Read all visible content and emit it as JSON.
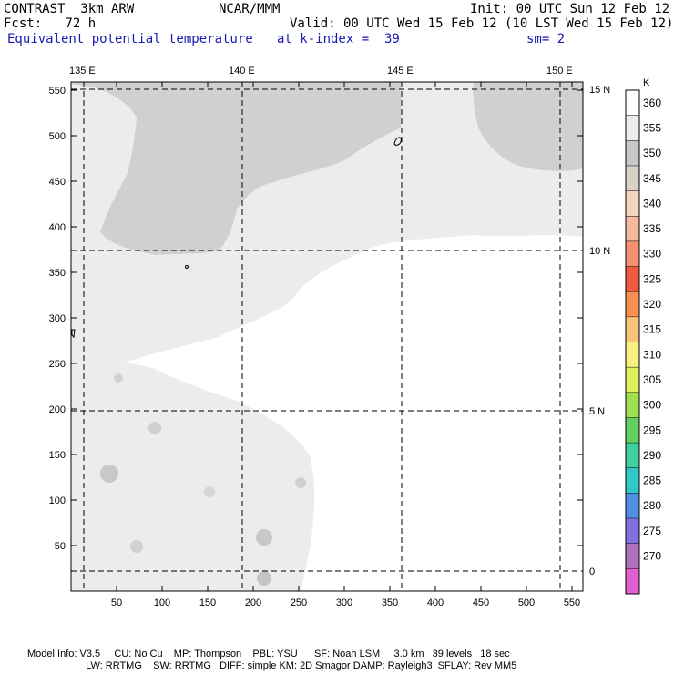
{
  "header": {
    "model": "CONTRAST  3km ARW",
    "center": "NCAR/MMM",
    "init": "Init: 00 UTC Sun 12 Feb 12",
    "fcst": "Fcst:   72 h",
    "valid": "Valid: 00 UTC Wed 15 Feb 12 (10 LST Wed 15 Feb 12)",
    "field": "Equivalent potential temperature",
    "level": "at k-index =  39",
    "smooth": "sm= 2"
  },
  "colors": {
    "title_blue": "#1a1ab3",
    "map_bg": "#ffffff",
    "shade_light": "#ececec",
    "shade_mid": "#d2d2d2",
    "shade_dark": "#bdbdbd"
  },
  "map": {
    "lon_labels": [
      "135 E",
      "140 E",
      "145 E",
      "150 E"
    ],
    "lat_labels": [
      "15 N",
      "10 N",
      "5 N",
      "0"
    ],
    "x_ticks": [
      "50",
      "100",
      "150",
      "200",
      "250",
      "300",
      "350",
      "400",
      "450",
      "500",
      "550"
    ],
    "y_ticks": [
      "550",
      "500",
      "450",
      "400",
      "350",
      "300",
      "250",
      "200",
      "150",
      "100",
      "50"
    ]
  },
  "colorbar": {
    "unit": "K",
    "levels": [
      "360",
      "355",
      "350",
      "345",
      "340",
      "335",
      "330",
      "325",
      "320",
      "315",
      "310",
      "305",
      "300",
      "295",
      "290",
      "285",
      "280",
      "275",
      "270"
    ],
    "colors": [
      "#ffffff",
      "#ececec",
      "#c8c8c8",
      "#d9d0c8",
      "#f4d6c0",
      "#f7b8a0",
      "#f79070",
      "#f05a40",
      "#f79050",
      "#f8c478",
      "#f8f080",
      "#e0f060",
      "#a0e050",
      "#60d060",
      "#40d0a0",
      "#30c8c8",
      "#5090e0",
      "#8070e0",
      "#b070c0",
      "#e060d0"
    ]
  },
  "footer": {
    "line1": "Model Info: V3.5     CU: No Cu    MP: Thompson    PBL: YSU      SF: Noah LSM     3.0 km   39 levels   18 sec",
    "line2": "                     LW: RRTMG    SW: RRTMG   DIFF: simple KM: 2D Smagor DAMP: Rayleigh3  SFLAY: Rev MM5"
  }
}
